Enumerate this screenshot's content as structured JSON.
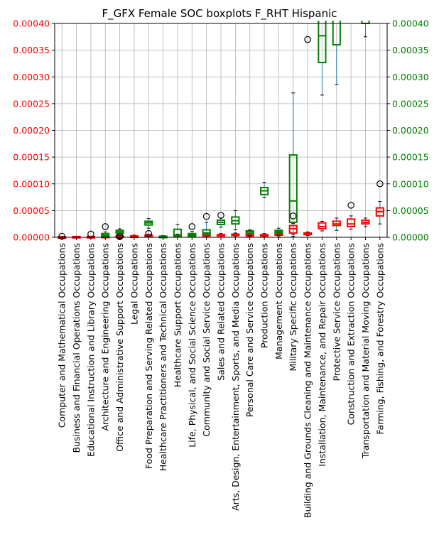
{
  "chart_data": {
    "type": "box",
    "title": "F_GFX Female SOC boxplots F_RHT Hispanic",
    "categories": [
      "Computer and Mathematical Occupations",
      "Business and Financial Operations Occupations",
      "Educational Instruction and Library Occupations",
      "Architecture and Engineering Occupations",
      "Office and Administrative Support Occupations",
      "Legal Occupations",
      "Food Preparation and Serving Related Occupations",
      "Healthcare Practitioners and Technical Occupations",
      "Healthcare Support Occupations",
      "Life, Physical, and Social Science Occupations",
      "Community and Social Service Occupations",
      "Sales and Related Occupations",
      "Arts, Design, Entertainment, Sports, and Media Occupations",
      "Personal Care and Service Occupations",
      "Production Occupations",
      "Management Occupations",
      "Military Specific Occupations",
      "Building and Grounds Cleaning and Maintenance Occupations",
      "Installation, Maintenance, and Repair Occupations",
      "Protective Service Occupations",
      "Construction and Extraction Occupations",
      "Transportation and Material Moving Occupations",
      "Farming, Fishing, and Forestry Occupations"
    ],
    "y_left": {
      "color": "#ff0000",
      "ylim": [
        0,
        0.0004
      ],
      "ticks": [
        "0.00000",
        "0.00005",
        "0.00010",
        "0.00015",
        "0.00020",
        "0.00025",
        "0.00030",
        "0.00035",
        "0.00040"
      ]
    },
    "y_right": {
      "color": "#008000",
      "ylim": [
        0,
        0.0004
      ],
      "ticks": [
        "0.00000",
        "0.00005",
        "0.00010",
        "0.00015",
        "0.00020",
        "0.00025",
        "0.00030",
        "0.00035",
        "0.00040"
      ]
    },
    "grid": true,
    "series": [
      {
        "axis": "left",
        "color": "#ff0000",
        "boxes": [
          {
            "i": 0,
            "q1": 0.0,
            "med": 5e-07,
            "q3": 1e-06,
            "wlo": 0.0,
            "whi": 2e-06,
            "fliers": [
              2e-06
            ]
          },
          {
            "i": 1,
            "q1": 5e-07,
            "med": 1e-06,
            "q3": 1.5e-06,
            "wlo": 0.0,
            "whi": 2e-06,
            "fliers": []
          },
          {
            "i": 2,
            "q1": 5e-07,
            "med": 1e-06,
            "q3": 1.5e-06,
            "wlo": 0.0,
            "whi": 2e-06,
            "fliers": [
              6e-06
            ]
          },
          {
            "i": 3,
            "q1": 1e-06,
            "med": 1.5e-06,
            "q3": 2e-06,
            "wlo": 0.0,
            "whi": 3e-06,
            "fliers": []
          },
          {
            "i": 4,
            "q1": 1e-06,
            "med": 1.5e-06,
            "q3": 2.5e-06,
            "wlo": 0.0,
            "whi": 4e-06,
            "fliers": [
              3e-06
            ]
          },
          {
            "i": 5,
            "q1": 1e-06,
            "med": 1.5e-06,
            "q3": 2.5e-06,
            "wlo": 0.0,
            "whi": 4e-06,
            "fliers": []
          },
          {
            "i": 6,
            "q1": 2e-06,
            "med": 3e-06,
            "q3": 4e-06,
            "wlo": 1e-06,
            "whi": 6e-06,
            "fliers": [
              7e-06
            ]
          },
          {
            "i": 7,
            "q1": 1e-06,
            "med": 1.5e-06,
            "q3": 2e-06,
            "wlo": 0.0,
            "whi": 3e-06,
            "fliers": []
          },
          {
            "i": 8,
            "q1": 2e-06,
            "med": 3e-06,
            "q3": 4e-06,
            "wlo": 1e-06,
            "whi": 6e-06,
            "fliers": []
          },
          {
            "i": 9,
            "q1": 2e-06,
            "med": 3e-06,
            "q3": 4e-06,
            "wlo": 1e-06,
            "whi": 6e-06,
            "fliers": []
          },
          {
            "i": 10,
            "q1": 3e-06,
            "med": 4e-06,
            "q3": 5e-06,
            "wlo": 1e-06,
            "whi": 7e-06,
            "fliers": []
          },
          {
            "i": 11,
            "q1": 3e-06,
            "med": 4e-06,
            "q3": 5e-06,
            "wlo": 2e-06,
            "whi": 7e-06,
            "fliers": []
          },
          {
            "i": 12,
            "q1": 4e-06,
            "med": 5e-06,
            "q3": 6e-06,
            "wlo": 2e-06,
            "whi": 8e-06,
            "fliers": []
          },
          {
            "i": 13,
            "q1": 3e-06,
            "med": 4e-06,
            "q3": 5e-06,
            "wlo": 1e-06,
            "whi": 7e-06,
            "fliers": []
          },
          {
            "i": 14,
            "q1": 3e-06,
            "med": 4e-06,
            "q3": 5e-06,
            "wlo": 1e-06,
            "whi": 7e-06,
            "fliers": []
          },
          {
            "i": 15,
            "q1": 4e-06,
            "med": 5e-06,
            "q3": 7e-06,
            "wlo": 1e-06,
            "whi": 1e-05,
            "fliers": []
          },
          {
            "i": 16,
            "q1": 8e-06,
            "med": 1.6e-05,
            "q3": 2.2e-05,
            "wlo": 2e-06,
            "whi": 2.6e-05,
            "fliers": []
          },
          {
            "i": 17,
            "q1": 5e-06,
            "med": 6e-06,
            "q3": 8e-06,
            "wlo": 3e-06,
            "whi": 1e-05,
            "fliers": [
              0.00037
            ]
          },
          {
            "i": 18,
            "q1": 1.6e-05,
            "med": 2e-05,
            "q3": 2.7e-05,
            "wlo": 1.2e-05,
            "whi": 3e-05,
            "fliers": []
          },
          {
            "i": 19,
            "q1": 2.2e-05,
            "med": 2.5e-05,
            "q3": 3e-05,
            "wlo": 1.3e-05,
            "whi": 3.6e-05,
            "fliers": []
          },
          {
            "i": 20,
            "q1": 2e-05,
            "med": 2.5e-05,
            "q3": 3.4e-05,
            "wlo": 1.5e-05,
            "whi": 4e-05,
            "fliers": [
              6e-05
            ]
          },
          {
            "i": 21,
            "q1": 2.5e-05,
            "med": 2.8e-05,
            "q3": 3.2e-05,
            "wlo": 2e-05,
            "whi": 3.6e-05,
            "fliers": []
          },
          {
            "i": 22,
            "q1": 4e-05,
            "med": 4.8e-05,
            "q3": 5.5e-05,
            "wlo": 2.5e-05,
            "whi": 6.7e-05,
            "fliers": [
              0.0001
            ]
          }
        ]
      },
      {
        "axis": "right",
        "color": "#008000",
        "boxes": [
          {
            "i": 3,
            "q1": 2e-06,
            "med": 4e-06,
            "q3": 7e-06,
            "wlo": 0.0,
            "whi": 1e-05,
            "fliers": [
              2e-05
            ]
          },
          {
            "i": 4,
            "q1": 8e-06,
            "med": 1.1e-05,
            "q3": 1.3e-05,
            "wlo": 4e-06,
            "whi": 1.6e-05,
            "fliers": [
              1e-06
            ]
          },
          {
            "i": 6,
            "q1": 2.3e-05,
            "med": 2.7e-05,
            "q3": 3e-05,
            "wlo": 1.7e-05,
            "whi": 3.5e-05,
            "fliers": []
          },
          {
            "i": 7,
            "q1": 5e-07,
            "med": 1e-06,
            "q3": 2e-06,
            "wlo": 0.0,
            "whi": 3e-06,
            "fliers": []
          },
          {
            "i": 8,
            "q1": 1e-06,
            "med": 4e-06,
            "q3": 1.5e-05,
            "wlo": 0.0,
            "whi": 2.4e-05,
            "fliers": []
          },
          {
            "i": 9,
            "q1": 2e-06,
            "med": 4e-06,
            "q3": 7e-06,
            "wlo": 0.0,
            "whi": 1.1e-05,
            "fliers": [
              2e-05
            ]
          },
          {
            "i": 10,
            "q1": 4e-06,
            "med": 8e-06,
            "q3": 1.4e-05,
            "wlo": 0.0,
            "whi": 2.8e-05,
            "fliers": [
              3.9e-05
            ]
          },
          {
            "i": 11,
            "q1": 2.4e-05,
            "med": 2.8e-05,
            "q3": 3.2e-05,
            "wlo": 1.9e-05,
            "whi": 3.6e-05,
            "fliers": [
              4.1e-05
            ]
          },
          {
            "i": 12,
            "q1": 2.5e-05,
            "med": 3.1e-05,
            "q3": 3.8e-05,
            "wlo": 1.4e-05,
            "whi": 5e-05,
            "fliers": []
          },
          {
            "i": 13,
            "q1": 7e-06,
            "med": 1e-05,
            "q3": 1.2e-05,
            "wlo": 3e-06,
            "whi": 1.4e-05,
            "fliers": []
          },
          {
            "i": 14,
            "q1": 8e-05,
            "med": 8.7e-05,
            "q3": 9.3e-05,
            "wlo": 7.4e-05,
            "whi": 0.000103,
            "fliers": []
          },
          {
            "i": 15,
            "q1": 8e-06,
            "med": 1.1e-05,
            "q3": 1.3e-05,
            "wlo": 4e-06,
            "whi": 1.7e-05,
            "fliers": []
          },
          {
            "i": 16,
            "q1": 2.8e-05,
            "med": 6.8e-05,
            "q3": 0.000154,
            "wlo": 5e-06,
            "whi": 0.00027,
            "fliers": [
              4e-05
            ]
          },
          {
            "i": 18,
            "q1": 0.000327,
            "med": 0.000377,
            "q3": 0.00042,
            "wlo": 0.000266,
            "whi": 0.00042,
            "fliers": []
          },
          {
            "i": 19,
            "q1": 0.00036,
            "med": 0.00041,
            "q3": 0.00042,
            "wlo": 0.000286,
            "whi": 0.00042,
            "fliers": []
          },
          {
            "i": 21,
            "q1": 0.0004,
            "med": 0.00041,
            "q3": 0.00042,
            "wlo": 0.000375,
            "whi": 0.00042,
            "fliers": []
          }
        ]
      }
    ]
  }
}
